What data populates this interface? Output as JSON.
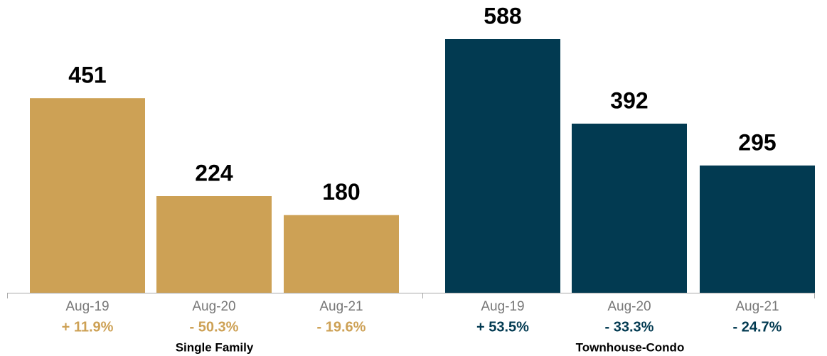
{
  "chart_data": [
    {
      "type": "bar",
      "title": "Single Family",
      "categories": [
        "Aug-19",
        "Aug-20",
        "Aug-21"
      ],
      "values": [
        451,
        224,
        180
      ],
      "changes": [
        "+ 11.9%",
        "- 50.3%",
        "- 19.6%"
      ],
      "color": "#cda155"
    },
    {
      "type": "bar",
      "title": "Townhouse-Condo",
      "categories": [
        "Aug-19",
        "Aug-20",
        "Aug-21"
      ],
      "values": [
        588,
        392,
        295
      ],
      "changes": [
        "+ 53.5%",
        "- 33.3%",
        "- 24.7%"
      ],
      "color": "#023a51"
    }
  ]
}
